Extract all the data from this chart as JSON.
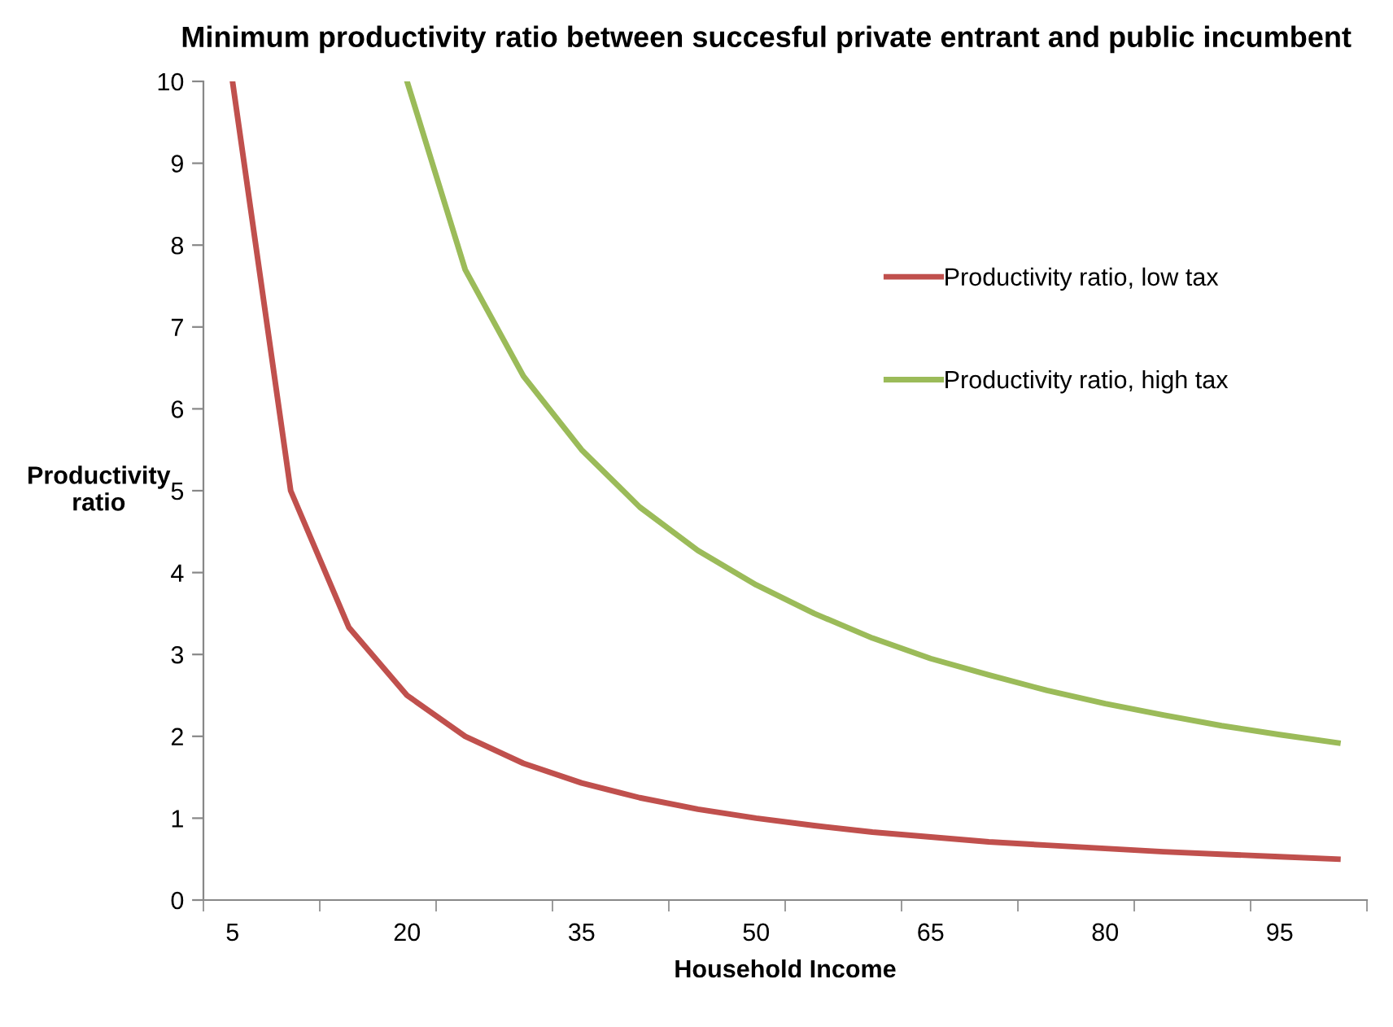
{
  "chart_data": {
    "type": "line",
    "title": "Minimum productivity ratio between succesful private entrant and public incumbent",
    "xlabel": "Household Income",
    "ylabel": "Productivity\nratio",
    "categories": [
      "5",
      null,
      null,
      "20",
      null,
      null,
      "35",
      null,
      null,
      "50",
      null,
      null,
      "65",
      null,
      null,
      "80",
      null,
      null,
      "95",
      null
    ],
    "series": [
      {
        "name": "Productivity ratio, low tax",
        "color": "#c0504d",
        "values": [
          10,
          5,
          3.33,
          2.5,
          2.0,
          1.67,
          1.43,
          1.25,
          1.11,
          1.0,
          0.91,
          0.83,
          0.77,
          0.71,
          0.67,
          0.63,
          0.59,
          0.56,
          0.53,
          0.5
        ]
      },
      {
        "name": "Productivity ratio, high tax",
        "color": "#9bbb59",
        "values": [
          null,
          null,
          null,
          10,
          7.7,
          6.4,
          5.5,
          4.8,
          4.27,
          3.85,
          3.5,
          3.2,
          2.95,
          2.75,
          2.56,
          2.4,
          2.26,
          2.13,
          2.02,
          1.92
        ]
      }
    ],
    "ylim": [
      0,
      10
    ],
    "yticks": [
      0,
      1,
      2,
      3,
      4,
      5,
      6,
      7,
      8,
      9,
      10
    ],
    "grid": false,
    "legend": "top right",
    "marker": "none",
    "line_style": "solid"
  }
}
